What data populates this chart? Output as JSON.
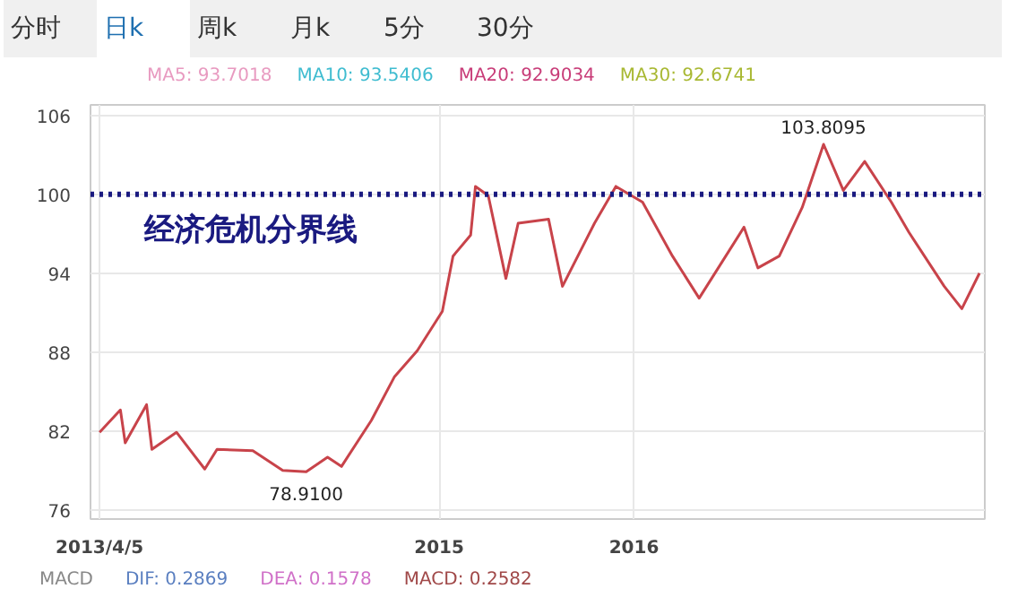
{
  "chart_data": {
    "type": "line",
    "color": "#c8434a",
    "marker": "none",
    "line_style": "solid",
    "grid": true,
    "x": [
      "2013-04-05",
      "2013-05-14",
      "2013-05-23",
      "2013-07-02",
      "2013-07-12",
      "2013-08-27",
      "2013-10-19",
      "2013-11-11",
      "2014-01-17",
      "2014-03-14",
      "2014-04-27",
      "2014-06-06",
      "2014-07-02",
      "2014-08-27",
      "2014-10-09",
      "2014-11-21",
      "2015-01-07",
      "2015-01-27",
      "2015-03-01",
      "2015-03-10",
      "2015-04-03",
      "2015-05-06",
      "2015-05-29",
      "2015-07-25",
      "2015-08-20",
      "2015-10-19",
      "2015-11-28",
      "2016-01-17",
      "2016-03-13",
      "2016-05-02",
      "2016-07-25",
      "2016-08-20",
      "2016-09-29",
      "2016-11-11",
      "2016-12-21",
      "2017-01-27",
      "2017-03-08",
      "2017-04-27",
      "2017-05-30",
      "2017-08-04",
      "2017-09-06",
      "2017-10-09"
    ],
    "values": [
      81.9,
      83.6,
      81.1,
      84.0,
      80.6,
      81.9,
      79.1,
      80.6,
      80.5,
      79.0,
      78.9,
      80.0,
      79.3,
      82.8,
      86.1,
      88.1,
      91.1,
      95.3,
      96.9,
      100.6,
      99.9,
      93.6,
      97.8,
      98.1,
      93.0,
      97.8,
      100.6,
      99.4,
      95.3,
      92.1,
      97.5,
      94.4,
      95.3,
      99.0,
      103.8,
      100.3,
      102.5,
      99.4,
      97.1,
      93.0,
      91.3,
      94.0
    ],
    "xlim": [
      "2013-03-19",
      "2017-10-19"
    ],
    "ylim": [
      75.3,
      106.8
    ],
    "yticks": [
      76,
      82,
      88,
      94,
      100,
      106
    ],
    "xticks": [
      {
        "value": "2013-04-05",
        "label": "2013/4/5"
      },
      {
        "value": "2015-01-01",
        "label": "2015"
      },
      {
        "value": "2016-01-01",
        "label": "2016"
      }
    ],
    "ref_lines": [
      {
        "axis": "y",
        "value": 100,
        "label": "经济危机分界线",
        "color": "#1a1a80",
        "line_style": "dotted"
      }
    ],
    "annotations": [
      {
        "text": "78.9100",
        "x": "2014-04-27",
        "y": 78.9
      },
      {
        "text": "103.8095",
        "x": "2016-12-21",
        "y": 103.8
      },
      "分时",
      "日k",
      "周k",
      "月k",
      "5分",
      "30分",
      "MA5: 93.7018",
      "MA10: 93.5406",
      "MA20: 92.9034",
      "MA30: 92.6741",
      "MACD",
      "DIF: 0.2869",
      "DEA: 0.1578",
      "MACD: 0.2582"
    ]
  }
}
